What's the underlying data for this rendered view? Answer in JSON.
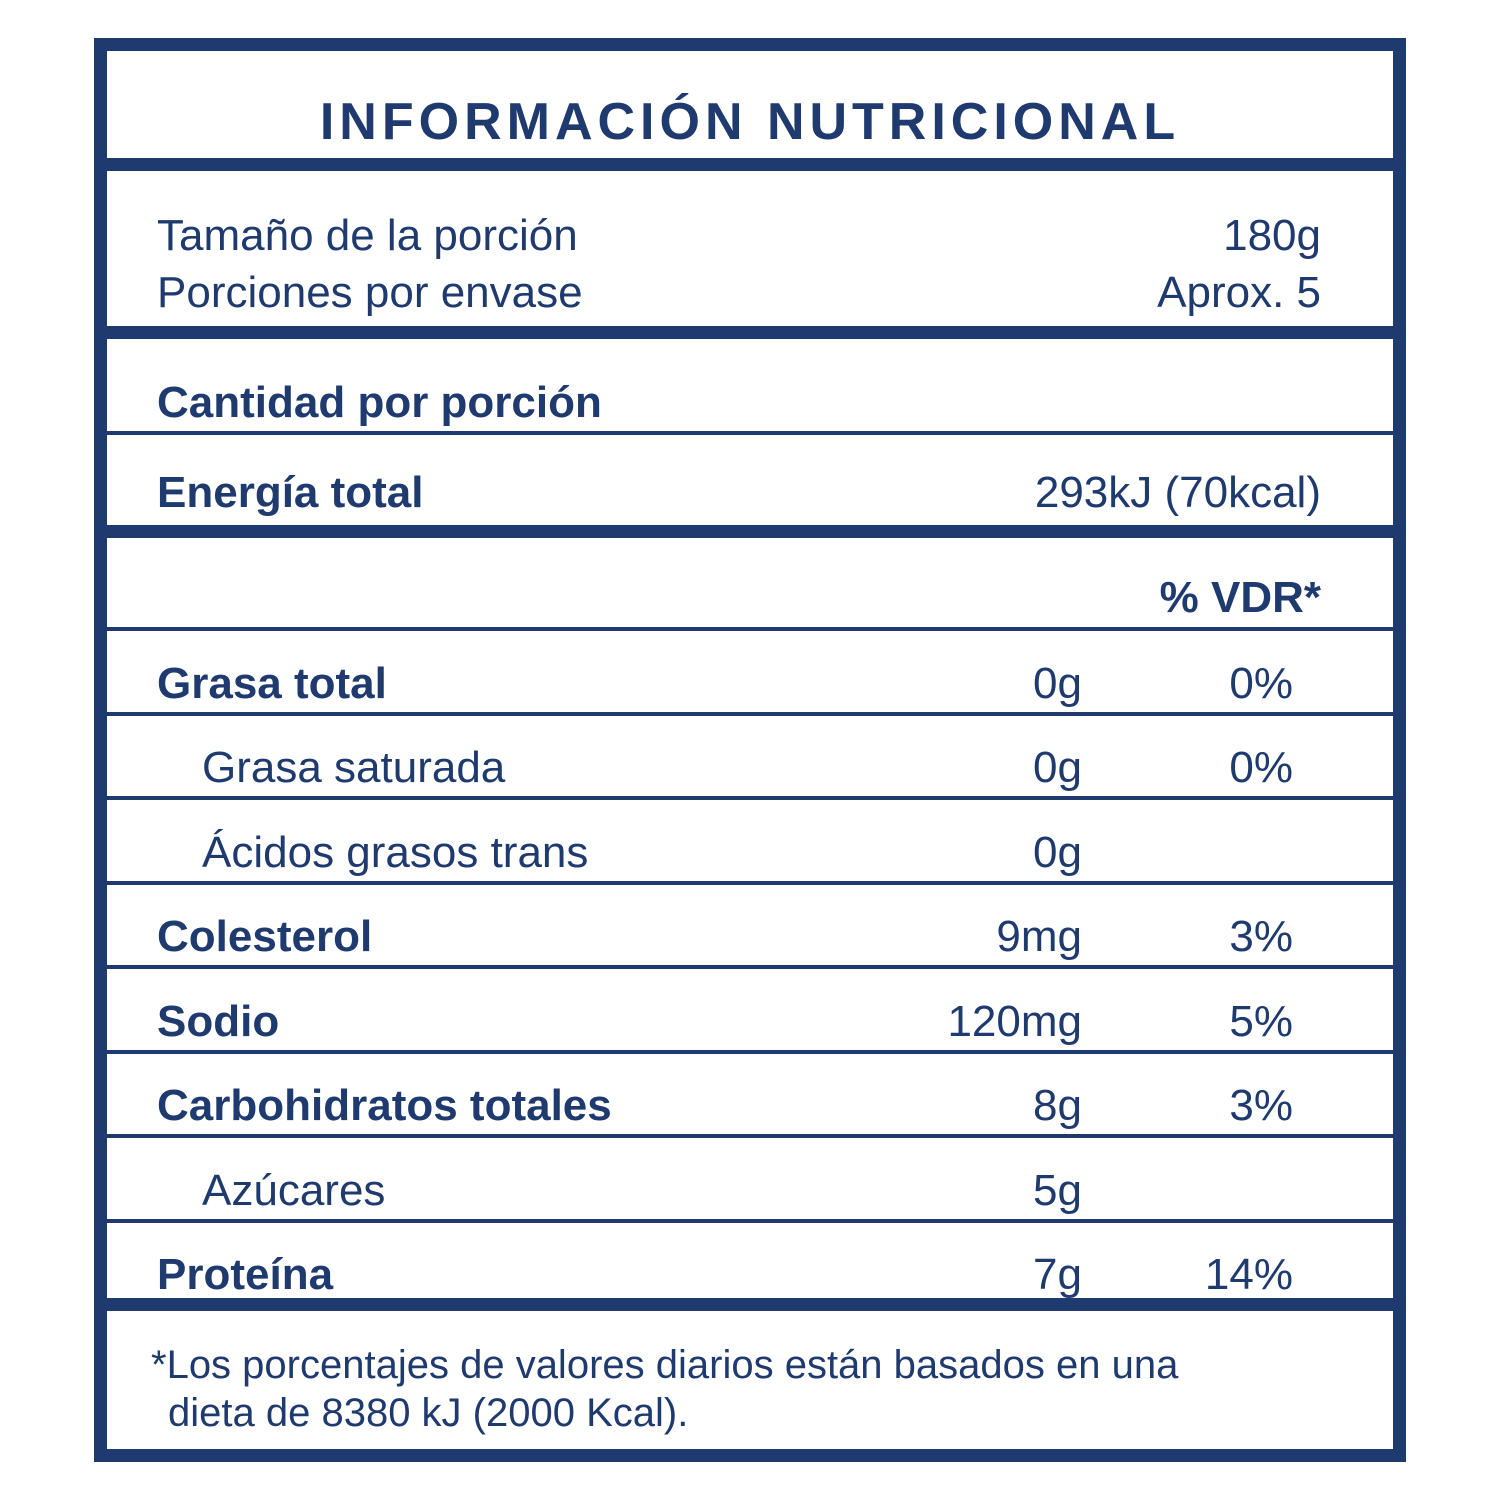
{
  "title": "INFORMACIÓN NUTRICIONAL",
  "serving": {
    "size_label": "Tamaño de la porción",
    "size_value": "180g",
    "servings_label": "Porciones por envase",
    "servings_value": "Aprox. 5"
  },
  "amount_per_serving": "Cantidad por porción",
  "energy": {
    "label": "Energía total",
    "value": "293kJ (70kcal)"
  },
  "vdr_header": "% VDR*",
  "nutrients": [
    {
      "label": "Grasa total",
      "amount": "0g",
      "pct": "0%",
      "bold": true
    },
    {
      "label": "Grasa saturada",
      "amount": "0g",
      "pct": "0%",
      "bold": false
    },
    {
      "label": "Ácidos grasos trans",
      "amount": "0g",
      "pct": "",
      "bold": false
    },
    {
      "label": "Colesterol",
      "amount": "9mg",
      "pct": "3%",
      "bold": true
    },
    {
      "label": "Sodio",
      "amount": "120mg",
      "pct": "5%",
      "bold": true
    },
    {
      "label": "Carbohidratos totales",
      "amount": "8g",
      "pct": "3%",
      "bold": true
    },
    {
      "label": "Azúcares",
      "amount": "5g",
      "pct": "",
      "bold": false
    },
    {
      "label": "Proteína",
      "amount": "7g",
      "pct": "14%",
      "bold": true
    }
  ],
  "footnote": {
    "line1": "*Los porcentajes de valores diarios están basados en una",
    "line2": "dieta de 8380 kJ (2000 Kcal)."
  },
  "colors": {
    "primary": "#1f3a6e",
    "background": "#ffffff"
  }
}
